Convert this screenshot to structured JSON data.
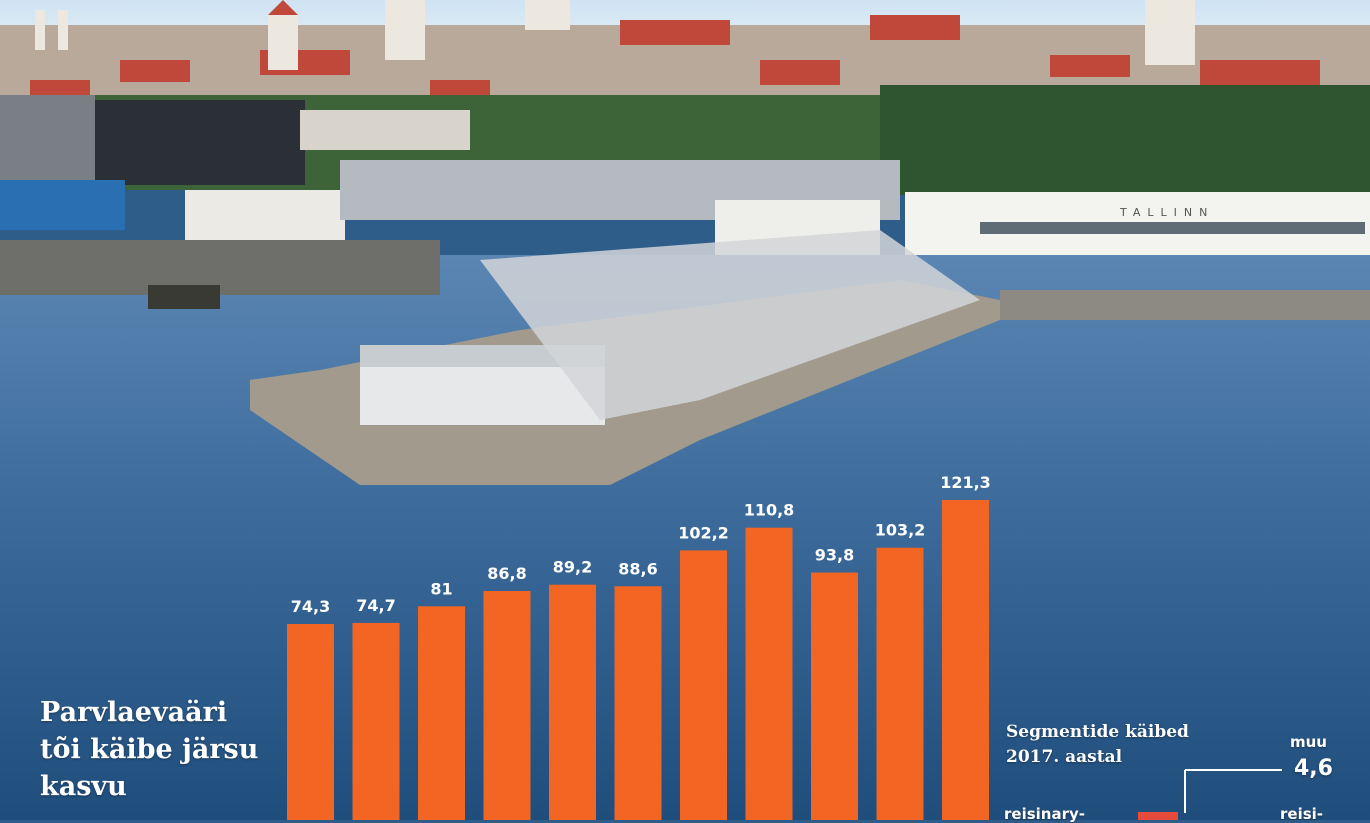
{
  "headline": [
    "Parvlaevaäri",
    "tõi käibe järsu",
    "kasvu"
  ],
  "chart_data": {
    "type": "bar",
    "values": [
      74.3,
      74.7,
      81,
      86.8,
      89.2,
      88.6,
      102.2,
      110.8,
      93.8,
      103.2,
      121.3
    ],
    "value_labels": [
      "74,3",
      "74,7",
      "81",
      "86,8",
      "89,2",
      "88,6",
      "102,2",
      "110,8",
      "93,8",
      "103,2",
      "121,3"
    ],
    "bar_color": "#f26522"
  },
  "segments": {
    "title": [
      "Segmentide käibed",
      "2017. aastal"
    ],
    "muu_label": "muu",
    "muu_value": "4,6",
    "left_label": "reisinary-",
    "right_label": "reisi-"
  },
  "photo": {
    "building_sign": "TALLINN"
  }
}
